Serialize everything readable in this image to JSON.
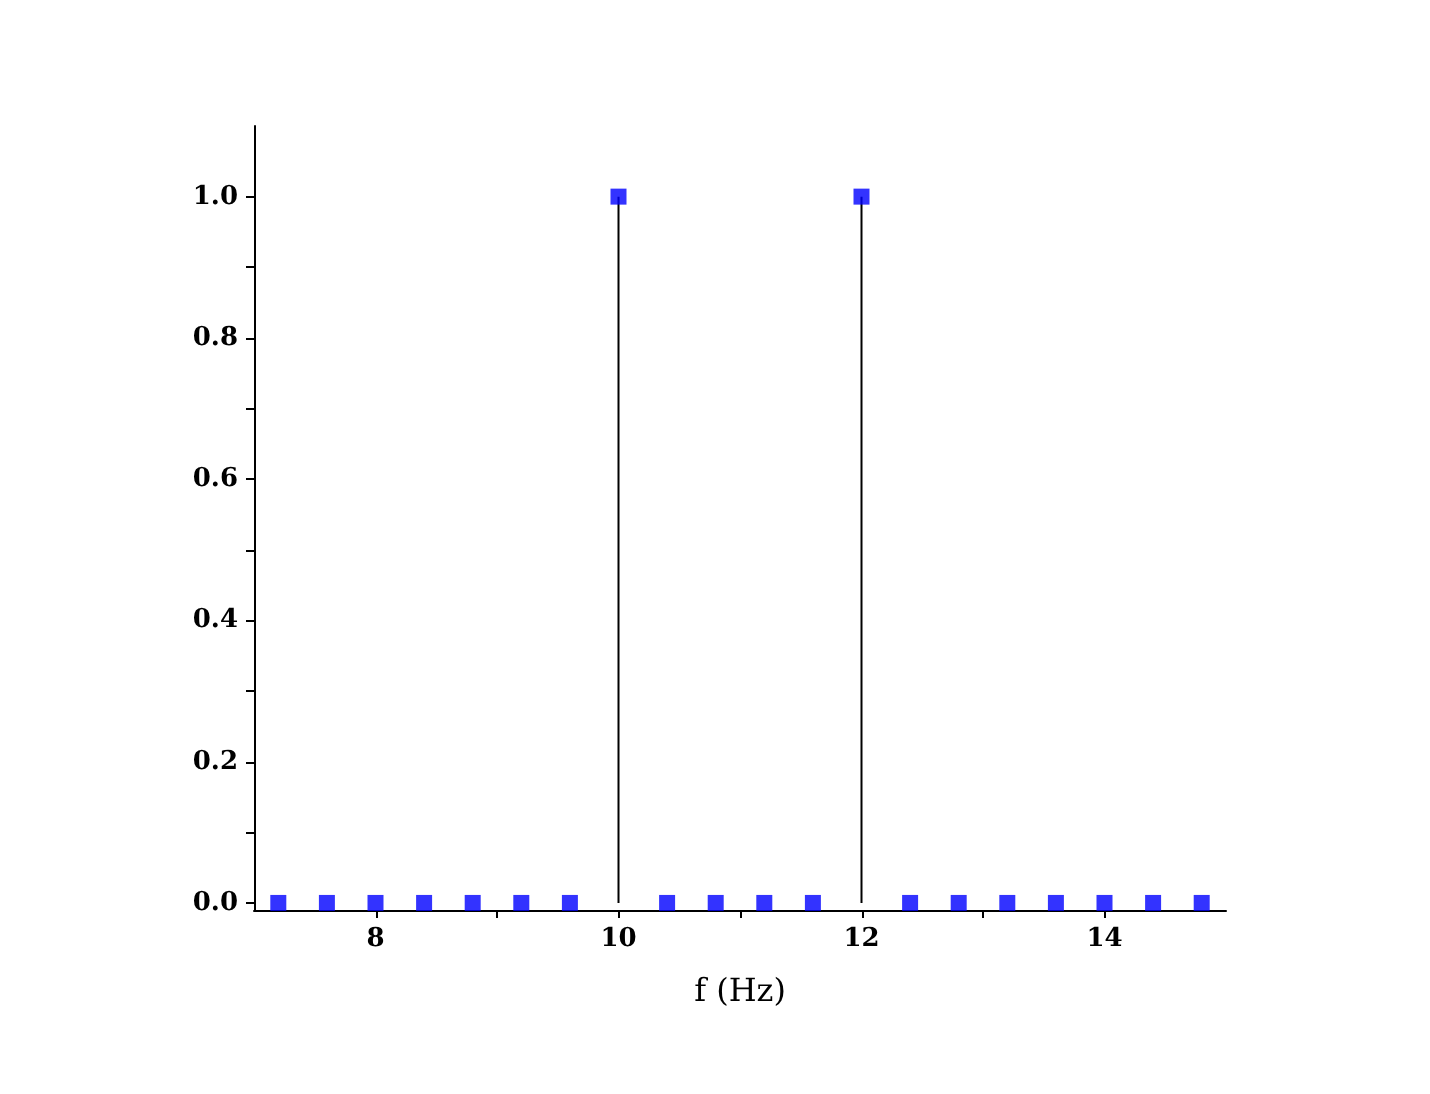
{
  "chart_data": {
    "type": "lollipop",
    "xlabel": "f (Hz)",
    "x": [
      7.2,
      7.6,
      8.0,
      8.4,
      8.8,
      9.2,
      9.6,
      10.0,
      10.4,
      10.8,
      11.2,
      11.6,
      12.0,
      12.4,
      12.8,
      13.2,
      13.6,
      14.0,
      14.4,
      14.8
    ],
    "series": [
      {
        "color": "#0000ff",
        "values": [
          0,
          0,
          0,
          0,
          0,
          0,
          0,
          1,
          0,
          0,
          0,
          0,
          1,
          0,
          0,
          0,
          0,
          0,
          0,
          0
        ]
      }
    ],
    "xlim": [
      7,
      15
    ],
    "ylim": [
      -0.01,
      1.1
    ],
    "xticks": [
      8,
      {
        "value": 9,
        "label": null
      },
      10,
      {
        "value": 11,
        "label": null
      },
      12,
      {
        "value": 13,
        "label": null
      },
      14
    ],
    "yticks": [
      {
        "value": 0,
        "label": "0.0"
      },
      {
        "value": 0.1,
        "label": null
      },
      {
        "value": 0.2,
        "label": "0.2"
      },
      {
        "value": 0.3,
        "label": null
      },
      {
        "value": 0.4,
        "label": "0.4"
      },
      {
        "value": 0.5,
        "label": null
      },
      {
        "value": 0.6,
        "label": "0.6"
      },
      {
        "value": 0.7,
        "label": null
      },
      {
        "value": 0.8,
        "label": "0.8"
      },
      {
        "value": 0.9,
        "label": null
      },
      {
        "value": 1.0,
        "label": "1.0"
      }
    ],
    "marker": "square"
  }
}
